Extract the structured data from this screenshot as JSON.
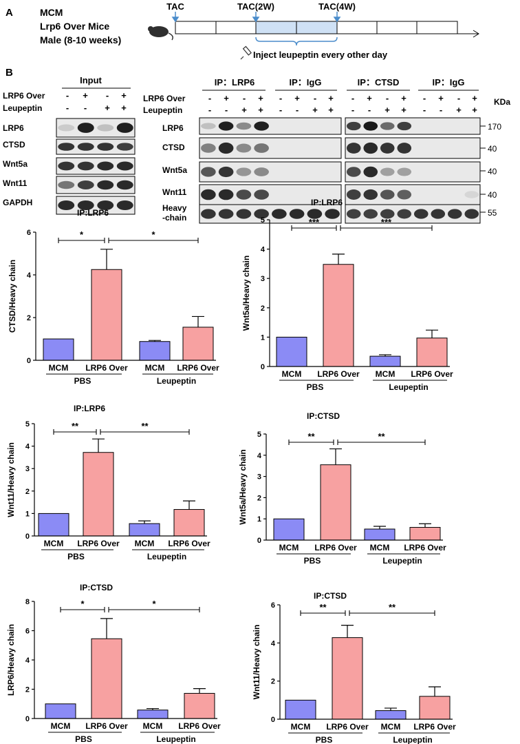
{
  "panelA": {
    "letter": "A",
    "info": [
      "MCM",
      "Lrp6 Over Mice",
      "Male (8-10 weeks)"
    ],
    "tac0": "TAC",
    "tac2": "TAC(2W)",
    "tac4": "TAC(4W)",
    "inject": "Inject leupeptin every other day",
    "colors": {
      "highlight": "#cfe1f5",
      "arrow": "#4a8ccb"
    },
    "icons": [
      "mouse-icon",
      "syringe-icon"
    ]
  },
  "panelB": {
    "letter": "B",
    "input_title": "Input",
    "row_labels": {
      "lrp6_over": "LRP6 Over",
      "leupeptin": "Leupeptin"
    },
    "ip_titles": [
      "IP：LRP6",
      "IP：IgG",
      "IP：CTSD",
      "IP：IgG"
    ],
    "kda": "KDa",
    "signs_lrp6": [
      "-",
      "+",
      "-",
      "+"
    ],
    "signs_leup": [
      "-",
      "-",
      "+",
      "+"
    ],
    "left_blots": [
      "LRP6",
      "CTSD",
      "Wnt5a",
      "Wnt11",
      "GAPDH"
    ],
    "right_blots": [
      "LRP6",
      "CTSD",
      "Wnt5a",
      "Wnt11",
      "Heavy",
      "-chain"
    ],
    "markers": [
      "170",
      "40",
      "40",
      "40",
      "55"
    ]
  },
  "chart_data": [
    {
      "type": "bar",
      "title": "IP:LRP6",
      "ylabel": "CTSD/Heavy chain",
      "categories": [
        "MCM",
        "LRP6 Over",
        "MCM",
        "LRP6 Over"
      ],
      "groups": [
        "PBS",
        "Leupeptin"
      ],
      "values": [
        1.0,
        4.25,
        0.88,
        1.55
      ],
      "errors": [
        0,
        0.95,
        0.05,
        0.5
      ],
      "ylim": [
        0,
        6
      ],
      "yticks": [
        "0",
        "2",
        "4",
        "6"
      ],
      "sig": [
        "*",
        "*"
      ],
      "colors": [
        "#8b8bf5",
        "#f7a1a1",
        "#8b8bf5",
        "#f7a1a1"
      ]
    },
    {
      "type": "bar",
      "title": "IP:LRP6",
      "ylabel": "Wnt5a/Heavy chain",
      "categories": [
        "MCM",
        "LRP6 Over",
        "MCM",
        "LRP6 Over"
      ],
      "groups": [
        "PBS",
        "Leupeptin"
      ],
      "values": [
        1.0,
        3.48,
        0.35,
        0.97
      ],
      "errors": [
        0,
        0.35,
        0.05,
        0.27
      ],
      "ylim": [
        0,
        5
      ],
      "yticks": [
        "0",
        "1",
        "2",
        "3",
        "4",
        "5"
      ],
      "sig": [
        "***",
        "***"
      ],
      "colors": [
        "#8b8bf5",
        "#f7a1a1",
        "#8b8bf5",
        "#f7a1a1"
      ]
    },
    {
      "type": "bar",
      "title": "IP:LRP6",
      "ylabel": "Wnt11/Heavy chain",
      "categories": [
        "MCM",
        "LRP6 Over",
        "MCM",
        "LRP6 Over"
      ],
      "groups": [
        "PBS",
        "Leupeptin"
      ],
      "values": [
        1.0,
        3.72,
        0.55,
        1.18
      ],
      "errors": [
        0,
        0.6,
        0.12,
        0.38
      ],
      "ylim": [
        0,
        5
      ],
      "yticks": [
        "0",
        "1",
        "2",
        "3",
        "4",
        "5"
      ],
      "sig": [
        "**",
        "**"
      ],
      "colors": [
        "#8b8bf5",
        "#f7a1a1",
        "#8b8bf5",
        "#f7a1a1"
      ]
    },
    {
      "type": "bar",
      "title": "IP:CTSD",
      "ylabel": "Wnt5a/Heavy chain",
      "categories": [
        "MCM",
        "LRP6 Over",
        "MCM",
        "LRP6 Over"
      ],
      "groups": [
        "PBS",
        "Leupeptin"
      ],
      "values": [
        1.0,
        3.55,
        0.52,
        0.6
      ],
      "errors": [
        0,
        0.75,
        0.13,
        0.17
      ],
      "ylim": [
        0,
        5
      ],
      "yticks": [
        "0",
        "1",
        "2",
        "3",
        "4",
        "5"
      ],
      "sig": [
        "**",
        "**"
      ],
      "colors": [
        "#8b8bf5",
        "#f7a1a1",
        "#8b8bf5",
        "#f7a1a1"
      ]
    },
    {
      "type": "bar",
      "title": "IP:CTSD",
      "ylabel": "LRP6/Heavy chain",
      "categories": [
        "MCM",
        "LRP6 Over",
        "MCM",
        "LRP6 Over"
      ],
      "groups": [
        "PBS",
        "Leupeptin"
      ],
      "values": [
        1.0,
        5.45,
        0.58,
        1.72
      ],
      "errors": [
        0,
        1.38,
        0.1,
        0.32
      ],
      "ylim": [
        0,
        8
      ],
      "yticks": [
        "0",
        "2",
        "4",
        "6",
        "8"
      ],
      "sig": [
        "*",
        "*"
      ],
      "colors": [
        "#8b8bf5",
        "#f7a1a1",
        "#8b8bf5",
        "#f7a1a1"
      ]
    },
    {
      "type": "bar",
      "title": "IP:CTSD",
      "ylabel": "Wnt11/Heavy chain",
      "categories": [
        "MCM",
        "LRP6 Over",
        "MCM",
        "LRP6 Over"
      ],
      "groups": [
        "PBS",
        "Leupeptin"
      ],
      "values": [
        1.0,
        4.28,
        0.45,
        1.2
      ],
      "errors": [
        0,
        0.65,
        0.13,
        0.5
      ],
      "ylim": [
        0,
        6
      ],
      "yticks": [
        "0",
        "2",
        "4",
        "6"
      ],
      "sig": [
        "**",
        "**"
      ],
      "colors": [
        "#8b8bf5",
        "#f7a1a1",
        "#8b8bf5",
        "#f7a1a1"
      ]
    }
  ]
}
